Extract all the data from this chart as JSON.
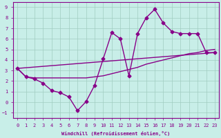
{
  "background_color": "#c8eee8",
  "grid_color": "#a0ccc0",
  "line_color": "#880088",
  "xlim": [
    -0.5,
    23.5
  ],
  "ylim": [
    -1.5,
    9.5
  ],
  "xticks": [
    0,
    1,
    2,
    3,
    4,
    5,
    6,
    7,
    8,
    9,
    10,
    11,
    12,
    13,
    14,
    15,
    16,
    17,
    18,
    19,
    20,
    21,
    22,
    23
  ],
  "yticks": [
    -1,
    0,
    1,
    2,
    3,
    4,
    5,
    6,
    7,
    8,
    9
  ],
  "xlabel": "Windchill (Refroidissement éolien,°C)",
  "series1_x": [
    0,
    1,
    2,
    3,
    4,
    5,
    6,
    7,
    8,
    9,
    10,
    11,
    12,
    13,
    14,
    15,
    16,
    17,
    18,
    19,
    20,
    21,
    22,
    23
  ],
  "series1_y": [
    3.2,
    2.4,
    2.2,
    1.8,
    1.1,
    0.9,
    0.5,
    -0.8,
    0.05,
    1.6,
    4.1,
    6.6,
    6.0,
    2.5,
    6.5,
    8.0,
    8.8,
    7.5,
    6.7,
    6.5,
    6.5,
    6.5,
    4.7,
    4.7
  ],
  "series2_x": [
    0,
    1,
    2,
    3,
    4,
    5,
    6,
    7,
    8,
    9,
    10,
    11,
    12,
    13,
    14,
    15,
    16,
    17,
    18,
    19,
    20,
    21,
    22,
    23
  ],
  "series2_y": [
    3.2,
    2.4,
    2.3,
    2.3,
    2.3,
    2.3,
    2.3,
    2.3,
    2.3,
    2.4,
    2.5,
    2.7,
    2.9,
    3.1,
    3.3,
    3.6,
    3.8,
    4.0,
    4.2,
    4.4,
    4.6,
    4.7,
    4.9,
    5.0
  ],
  "series3_x": [
    0,
    23
  ],
  "series3_y": [
    3.2,
    4.7
  ]
}
